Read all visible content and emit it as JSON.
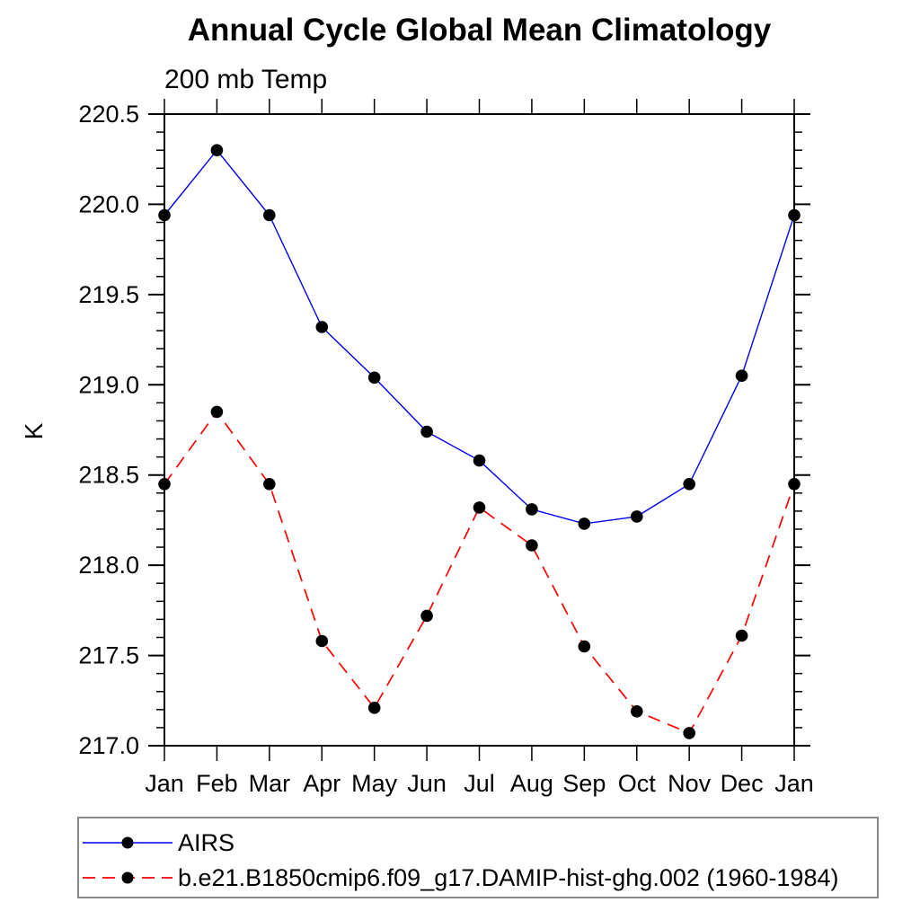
{
  "chart": {
    "title": "Annual Cycle Global Mean Climatology",
    "subtitle": "200 mb Temp",
    "ylabel": "K"
  },
  "chart_data": {
    "type": "line",
    "title": "Annual Cycle Global Mean Climatology",
    "subtitle": "200 mb Temp",
    "xlabel": "",
    "ylabel": "K",
    "categories": [
      "Jan",
      "Feb",
      "Mar",
      "Apr",
      "May",
      "Jun",
      "Jul",
      "Aug",
      "Sep",
      "Oct",
      "Nov",
      "Dec",
      "Jan"
    ],
    "series": [
      {
        "name": "AIRS",
        "color": "#0000ee",
        "line_style": "solid",
        "marker": "filled-circle",
        "marker_color": "#000000",
        "values": [
          219.94,
          220.3,
          219.94,
          219.32,
          219.04,
          218.74,
          218.58,
          218.31,
          218.23,
          218.27,
          218.45,
          219.05,
          219.94
        ]
      },
      {
        "name": "b.e21.B1850cmip6.f09_g17.DAMIP-hist-ghg.002 (1960-1984)",
        "color": "#ff0000",
        "line_style": "dashed",
        "marker": "filled-circle",
        "marker_color": "#000000",
        "values": [
          218.45,
          218.85,
          218.45,
          217.58,
          217.21,
          217.72,
          218.32,
          218.11,
          217.55,
          217.19,
          217.07,
          217.61,
          218.45
        ]
      }
    ],
    "ylim": [
      217.0,
      220.5
    ],
    "ytick_labels": [
      "217.0",
      "217.5",
      "218.0",
      "218.5",
      "219.0",
      "219.5",
      "220.0",
      "220.5"
    ],
    "ytick_major_step": 0.5,
    "ytick_minor_step": 0.1,
    "grid": false,
    "legend_position": "bottom-left-box",
    "axis_color": "#000000",
    "legend_border_color": "#888888"
  }
}
